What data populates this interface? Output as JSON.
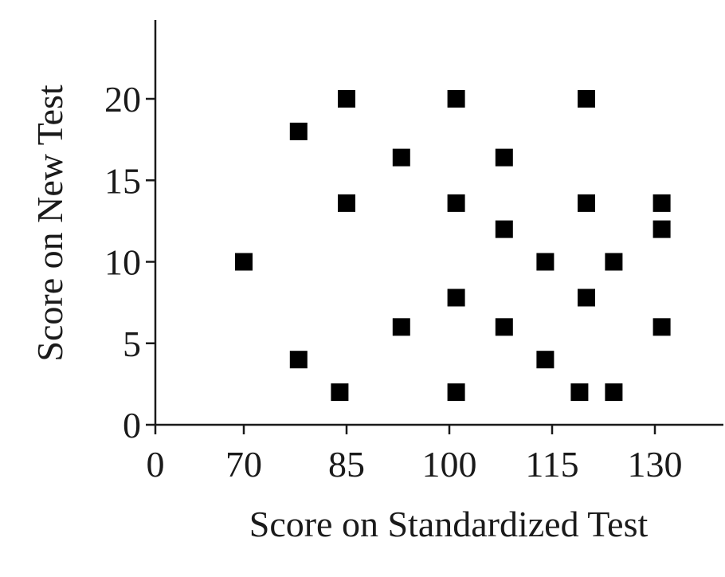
{
  "chart_data": {
    "type": "scatter",
    "title": "",
    "xlabel": "Score on Standardized Test",
    "ylabel": "Score on New Test",
    "x_ticks": [
      "0",
      "70",
      "85",
      "100",
      "115",
      "130"
    ],
    "y_ticks": [
      "0",
      "5",
      "10",
      "15",
      "20"
    ],
    "x_axis_break": true,
    "ylim": [
      0,
      24.5
    ],
    "grid": false,
    "marker": "square",
    "marker_color": "#000000",
    "points": [
      {
        "x": 70,
        "y": 10
      },
      {
        "x": 78,
        "y": 18
      },
      {
        "x": 78,
        "y": 4
      },
      {
        "x": 84,
        "y": 2
      },
      {
        "x": 85,
        "y": 20
      },
      {
        "x": 85,
        "y": 13.6
      },
      {
        "x": 93,
        "y": 16.4
      },
      {
        "x": 93,
        "y": 6
      },
      {
        "x": 101,
        "y": 20
      },
      {
        "x": 101,
        "y": 13.6
      },
      {
        "x": 101,
        "y": 7.8
      },
      {
        "x": 101,
        "y": 2
      },
      {
        "x": 108,
        "y": 16.4
      },
      {
        "x": 108,
        "y": 12
      },
      {
        "x": 108,
        "y": 6
      },
      {
        "x": 114,
        "y": 10
      },
      {
        "x": 114,
        "y": 4
      },
      {
        "x": 119,
        "y": 2
      },
      {
        "x": 120,
        "y": 20
      },
      {
        "x": 120,
        "y": 13.6
      },
      {
        "x": 120,
        "y": 7.8
      },
      {
        "x": 124,
        "y": 10
      },
      {
        "x": 124,
        "y": 2
      },
      {
        "x": 131,
        "y": 13.6
      },
      {
        "x": 131,
        "y": 12
      },
      {
        "x": 131,
        "y": 6
      }
    ]
  }
}
